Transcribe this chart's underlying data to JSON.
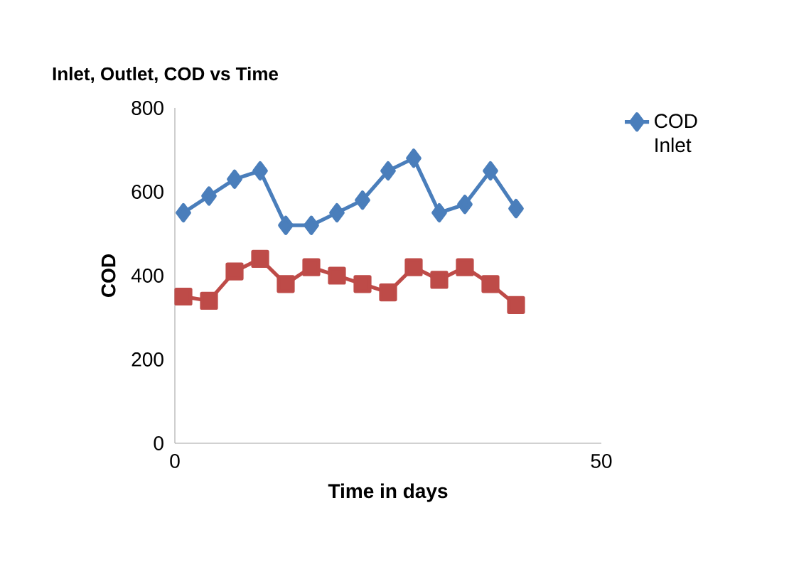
{
  "chart_data": {
    "type": "line",
    "title": "Inlet, Outlet, COD vs Time",
    "xlabel": "Time in days",
    "ylabel": "COD",
    "x": [
      1,
      4,
      7,
      10,
      13,
      16,
      19,
      22,
      25,
      28,
      31,
      34,
      37,
      40
    ],
    "series": [
      {
        "name": "COD Inlet",
        "color": "#4a7ebb",
        "marker": "diamond",
        "values": [
          550,
          590,
          630,
          650,
          520,
          520,
          550,
          580,
          650,
          680,
          550,
          570,
          650,
          560
        ]
      },
      {
        "color": "#be4b48",
        "marker": "square",
        "values": [
          350,
          340,
          410,
          440,
          380,
          420,
          400,
          380,
          360,
          420,
          390,
          420,
          380,
          330
        ]
      }
    ],
    "xlim": [
      0,
      50
    ],
    "xticks": [
      0,
      50
    ],
    "ylim": [
      0,
      800
    ],
    "yticks": [
      0,
      200,
      400,
      600,
      800
    ],
    "grid": false,
    "legend": "top right"
  }
}
